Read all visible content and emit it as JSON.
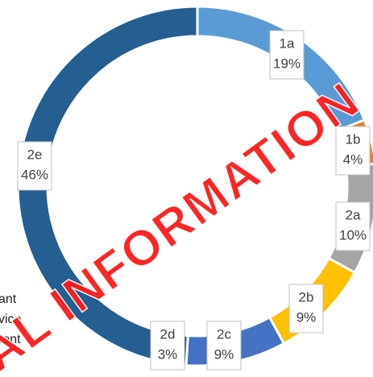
{
  "chart_data": {
    "type": "donut",
    "categories": [
      "1a",
      "1b",
      "2a",
      "2b",
      "2c",
      "2d",
      "2e"
    ],
    "values": [
      19,
      4,
      10,
      9,
      9,
      3,
      46
    ],
    "value_labels": [
      "19%",
      "4%",
      "10%",
      "9%",
      "9%",
      "3%",
      "46%"
    ],
    "colors": [
      "#5b9bd5",
      "#ed7d31",
      "#a5a5a5",
      "#ffc000",
      "#4472c4",
      "#2f5597",
      "#255e91"
    ],
    "legend_fragments": [
      "ant",
      "vice",
      "rent"
    ],
    "watermark": "AL INFORMATION"
  }
}
